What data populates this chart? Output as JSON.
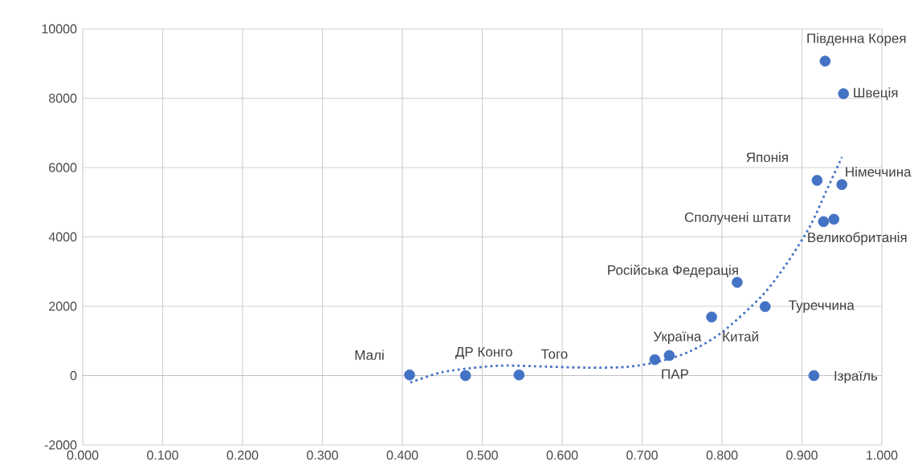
{
  "chart_data": {
    "type": "scatter",
    "xlim": [
      0,
      1
    ],
    "ylim": [
      -2000,
      10000
    ],
    "xticks": [
      {
        "value": 0,
        "label": "0.000"
      },
      {
        "value": 0.1,
        "label": "0.100"
      },
      {
        "value": 0.2,
        "label": "0.200"
      },
      {
        "value": 0.3,
        "label": "0.300"
      },
      {
        "value": 0.4,
        "label": "0.400"
      },
      {
        "value": 0.5,
        "label": "0.500"
      },
      {
        "value": 0.6,
        "label": "0.600"
      },
      {
        "value": 0.7,
        "label": "0.700"
      },
      {
        "value": 0.8,
        "label": "0.800"
      },
      {
        "value": 0.9,
        "label": "0.900"
      },
      {
        "value": 1,
        "label": "1.000"
      }
    ],
    "yticks": [
      -2000,
      0,
      2000,
      4000,
      6000,
      8000,
      10000
    ],
    "grid": true,
    "marker": "circle",
    "series": [
      {
        "color": "#4472c4",
        "x": [
          0.409,
          0.479,
          0.546,
          0.716,
          0.734,
          0.787,
          0.819,
          0.854,
          0.915,
          0.919,
          0.927,
          0.94,
          0.95,
          0.929,
          0.952
        ],
        "values": [
          20,
          0,
          20,
          460,
          580,
          1690,
          2690,
          1990,
          0,
          5630,
          4440,
          4510,
          5510,
          9070,
          8130
        ]
      },
      {
        "type": "line",
        "color": "#4472c4",
        "line_style": "dotted",
        "marker": "none",
        "x": [
          0.41,
          0.45,
          0.5,
          0.53,
          0.58,
          0.63,
          0.68,
          0.72,
          0.76,
          0.8,
          0.85,
          0.88,
          0.91,
          0.93,
          0.95
        ],
        "values": [
          -200,
          100,
          250,
          290,
          260,
          230,
          250,
          400,
          700,
          1250,
          2300,
          3200,
          4300,
          5300,
          6300
        ]
      }
    ],
    "annotations": [
      {
        "text": "Малі",
        "x": 0.409,
        "y": 20
      },
      {
        "text": "ДР Конго",
        "x": 0.479,
        "y": 0
      },
      {
        "text": "Того",
        "x": 0.546,
        "y": 20
      },
      {
        "text": "ПАР",
        "x": 0.716,
        "y": 460
      },
      {
        "text": "Україна",
        "x": 0.734,
        "y": 580
      },
      {
        "text": "Китай",
        "x": 0.787,
        "y": 1690
      },
      {
        "text": "Російська Федерація",
        "x": 0.819,
        "y": 2690
      },
      {
        "text": "Туреччина",
        "x": 0.854,
        "y": 1990
      },
      {
        "text": "Ізраїль",
        "x": 0.915,
        "y": 0
      },
      {
        "text": "Японія",
        "x": 0.919,
        "y": 5630
      },
      {
        "text": "Сполучені штати",
        "x": 0.927,
        "y": 4440
      },
      {
        "text": "Великобританія",
        "x": 0.94,
        "y": 4510
      },
      {
        "text": "Німеччина",
        "x": 0.95,
        "y": 5510
      },
      {
        "text": "Південна Корея",
        "x": 0.929,
        "y": 9070
      },
      {
        "text": "Швеція",
        "x": 0.952,
        "y": 8130
      }
    ]
  }
}
